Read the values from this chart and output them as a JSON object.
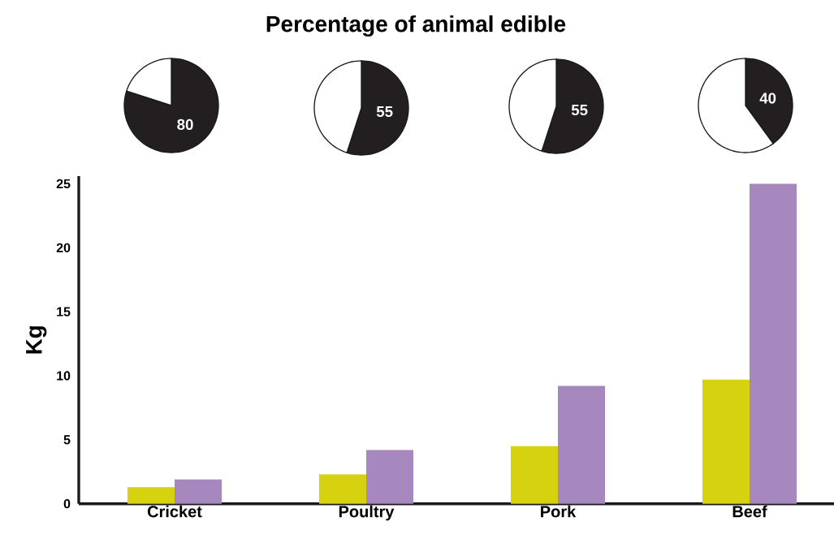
{
  "chart_data": [
    {
      "type": "other",
      "title": "Percentage of animal edible"
    },
    {
      "type": "pie",
      "categories": [
        null,
        null
      ],
      "values": [
        80,
        20
      ],
      "colors": [
        "#231f20",
        "#ffffff"
      ],
      "value_labels": [
        "80",
        null
      ]
    },
    {
      "type": "pie",
      "categories": [
        null,
        null
      ],
      "values": [
        55,
        45
      ],
      "colors": [
        "#231f20",
        "#ffffff"
      ],
      "value_labels": [
        "55",
        null
      ]
    },
    {
      "type": "pie",
      "categories": [
        null,
        null
      ],
      "values": [
        55,
        45
      ],
      "colors": [
        "#231f20",
        "#ffffff"
      ],
      "value_labels": [
        "55",
        null
      ]
    },
    {
      "type": "pie",
      "categories": [
        null,
        null
      ],
      "values": [
        40,
        60
      ],
      "colors": [
        "#231f20",
        "#ffffff"
      ],
      "value_labels": [
        "40",
        null
      ]
    },
    {
      "type": "bar",
      "categories": [
        "Cricket",
        "Poultry",
        "Pork",
        "Beef"
      ],
      "ylabel": "Kg",
      "ylim": [
        0,
        25.6
      ],
      "yticks": [
        0,
        5,
        10,
        15,
        20,
        25
      ],
      "series": [
        {
          "color": "#d6d20f",
          "values": [
            1.3,
            2.3,
            4.5,
            9.7
          ]
        },
        {
          "color": "#a688bf",
          "values": [
            1.9,
            4.2,
            9.2,
            25
          ]
        }
      ]
    }
  ]
}
